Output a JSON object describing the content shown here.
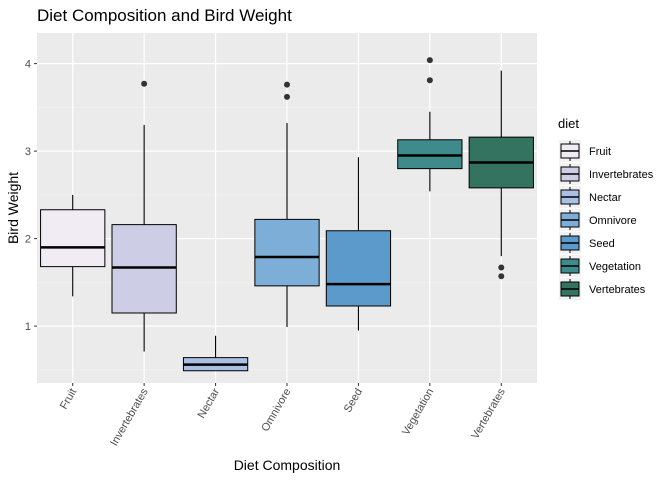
{
  "chart_data": {
    "type": "boxplot",
    "title": "Diet Composition and Bird Weight",
    "xlabel": "Diet Composition",
    "ylabel": "Bird Weight",
    "ylim": [
      0.35,
      4.35
    ],
    "yticks": [
      1,
      2,
      3,
      4
    ],
    "grid": true,
    "legend": {
      "title": "diet",
      "placement": "right"
    },
    "categories": [
      "Fruit",
      "Invertebrates",
      "Nectar",
      "Omnivore",
      "Seed",
      "Vegetation",
      "Vertebrates"
    ],
    "series": [
      {
        "category": "Fruit",
        "color": "#F1EBF4",
        "min": 1.34,
        "q1": 1.68,
        "median": 1.9,
        "q3": 2.33,
        "max": 2.5,
        "outliers": []
      },
      {
        "category": "Invertebrates",
        "color": "#CDCDE6",
        "min": 0.71,
        "q1": 1.15,
        "median": 1.67,
        "q3": 2.16,
        "max": 3.3,
        "outliers": [
          3.77
        ]
      },
      {
        "category": "Nectar",
        "color": "#A9BFE3",
        "min": 0.49,
        "q1": 0.49,
        "median": 0.56,
        "q3": 0.64,
        "max": 0.89,
        "outliers": []
      },
      {
        "category": "Omnivore",
        "color": "#7DAED7",
        "min": 0.99,
        "q1": 1.46,
        "median": 1.79,
        "q3": 2.22,
        "max": 3.32,
        "outliers": [
          3.62,
          3.76
        ]
      },
      {
        "category": "Seed",
        "color": "#5B9ACA",
        "min": 0.95,
        "q1": 1.23,
        "median": 1.48,
        "q3": 2.09,
        "max": 2.93,
        "outliers": []
      },
      {
        "category": "Vegetation",
        "color": "#3F8A8A",
        "min": 2.54,
        "q1": 2.8,
        "median": 2.95,
        "q3": 3.13,
        "max": 3.45,
        "outliers": [
          3.81,
          4.04
        ]
      },
      {
        "category": "Vertebrates",
        "color": "#34735F",
        "min": 1.8,
        "q1": 2.58,
        "median": 2.87,
        "q3": 3.16,
        "max": 3.92,
        "outliers": [
          1.67,
          1.57
        ]
      }
    ]
  }
}
